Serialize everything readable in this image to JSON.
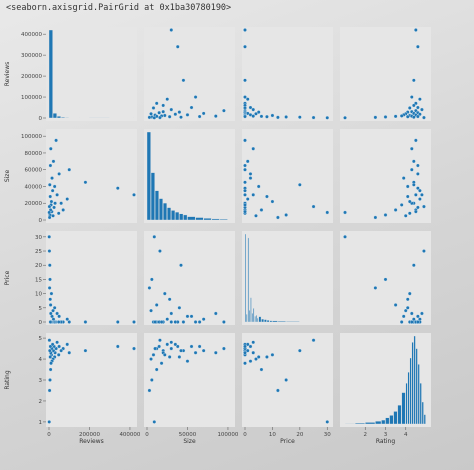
{
  "repr_text": "<seaborn.axisgrid.PairGrid at 0x1ba30780190>",
  "colors": {
    "point": "#1f77b4",
    "panel_bg": "#e6e6e6",
    "tick_text": "#444444"
  },
  "chart_data": {
    "type": "pairplot",
    "variables": [
      "Reviews",
      "Size",
      "Price",
      "Rating"
    ],
    "grid": false,
    "axes": {
      "Reviews": {
        "range": [
          0,
          420000
        ],
        "y_ticks": [
          0,
          100000,
          200000,
          300000,
          400000
        ],
        "y_tick_labels": [
          "0",
          "100000",
          "200000",
          "300000",
          "400000"
        ],
        "x_ticks": [
          0,
          200000,
          400000
        ],
        "x_tick_labels": [
          "0",
          "200000",
          "400000"
        ]
      },
      "Size": {
        "range": [
          0,
          105000
        ],
        "y_ticks": [
          0,
          20000,
          40000,
          60000,
          80000,
          100000
        ],
        "y_tick_labels": [
          "0",
          "20000",
          "40000",
          "60000",
          "80000",
          "100000"
        ],
        "x_ticks": [
          0,
          50000,
          100000
        ],
        "x_tick_labels": [
          "0",
          "50000",
          "100000"
        ]
      },
      "Price": {
        "range": [
          0,
          31
        ],
        "y_ticks": [
          0,
          5,
          10,
          15,
          20,
          25,
          30
        ],
        "y_tick_labels": [
          "0",
          "5",
          "10",
          "15",
          "20",
          "25",
          "30"
        ],
        "x_ticks": [
          0,
          10,
          20,
          30
        ],
        "x_tick_labels": [
          "0",
          "10",
          "20",
          "30"
        ]
      },
      "Rating": {
        "range": [
          0.9,
          5.1
        ],
        "y_ticks": [
          1,
          2,
          3,
          4,
          5
        ],
        "y_tick_labels": [
          "1",
          "2",
          "3",
          "4",
          "5"
        ],
        "x_ticks": [
          2,
          3,
          4
        ],
        "x_tick_labels": [
          "2",
          "3",
          "4"
        ]
      }
    },
    "histograms": {
      "Reviews": {
        "bins": [
          0,
          20000,
          40000,
          60000,
          80000,
          100000,
          150000,
          200000,
          300000,
          420000
        ],
        "counts": [
          520,
          28,
          10,
          5,
          3,
          2,
          2,
          1,
          2
        ]
      },
      "Size": {
        "bins": [
          0,
          5000,
          10000,
          15000,
          20000,
          25000,
          30000,
          35000,
          40000,
          45000,
          50000,
          60000,
          70000,
          80000,
          90000,
          100000
        ],
        "counts": [
          780,
          420,
          260,
          190,
          150,
          110,
          85,
          70,
          55,
          45,
          30,
          22,
          15,
          10,
          8
        ]
      },
      "Price": {
        "bins": [
          0,
          0.5,
          1,
          1.5,
          2,
          2.5,
          3,
          3.5,
          4,
          4.5,
          5,
          6,
          7,
          8,
          9,
          10,
          12,
          15,
          20,
          25,
          30
        ],
        "counts": [
          900,
          80,
          860,
          120,
          250,
          90,
          140,
          60,
          70,
          40,
          55,
          30,
          25,
          18,
          14,
          12,
          9,
          6,
          4,
          3
        ]
      },
      "Rating": {
        "bins": [
          1,
          1.5,
          2,
          2.5,
          2.8,
          3.0,
          3.2,
          3.4,
          3.6,
          3.8,
          4.0,
          4.1,
          4.2,
          4.3,
          4.4,
          4.5,
          4.6,
          4.7,
          4.8,
          4.9,
          5.0
        ],
        "counts": [
          3,
          6,
          10,
          18,
          25,
          40,
          55,
          80,
          120,
          200,
          260,
          330,
          420,
          520,
          560,
          480,
          380,
          260,
          140,
          60
        ]
      }
    },
    "points": {
      "Reviews": [
        420000,
        340000,
        180000,
        100000,
        90000,
        70000,
        60000,
        50000,
        48000,
        40000,
        35000,
        30000,
        28000,
        25000,
        22000,
        20000,
        18000,
        15000,
        14000,
        12000,
        10000,
        9000,
        8000,
        7000,
        6000,
        5000,
        4000,
        3000,
        2000,
        1000
      ],
      "Size": [
        30000,
        38000,
        45000,
        60000,
        25000,
        12000,
        20000,
        55000,
        8000,
        30000,
        95000,
        20000,
        40000,
        15000,
        70000,
        5000,
        35000,
        50000,
        10000,
        22000,
        18000,
        85000,
        12000,
        65000,
        28000,
        6000,
        42000,
        3000,
        16000,
        9000
      ],
      "Price": [
        0,
        0,
        0,
        0,
        1,
        0,
        0,
        2,
        0,
        3,
        0,
        0,
        5,
        0,
        1,
        4,
        0,
        2,
        0,
        10,
        0,
        3,
        6,
        0,
        8,
        15,
        20,
        12,
        25,
        30
      ],
      "Rating": [
        4.5,
        4.6,
        4.4,
        4.3,
        4.7,
        4.5,
        4.4,
        4.6,
        4.2,
        4.8,
        4.5,
        4.3,
        4.1,
        4.6,
        4.4,
        4.0,
        4.7,
        3.9,
        4.5,
        4.2,
        3.8,
        4.3,
        3.5,
        4.6,
        4.1,
        3.0,
        4.4,
        2.5,
        4.9,
        1.0
      ]
    }
  }
}
